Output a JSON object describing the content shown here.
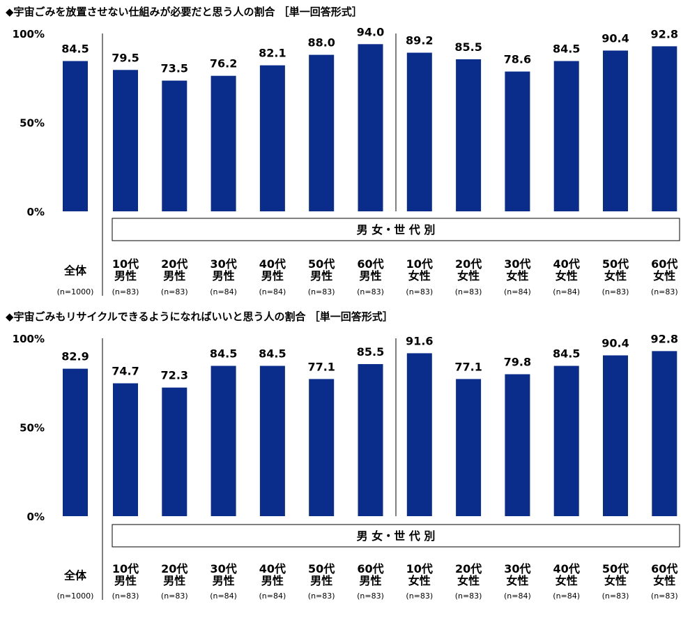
{
  "chart_data": [
    {
      "type": "bar",
      "title": "◆宇宙ごみを放置させない仕組みが必要だと思う人の割合 ［単一回答形式］",
      "group_label": "男 女・世 代 別",
      "yticks": [
        "100%",
        "50%",
        "0%"
      ],
      "ylim": [
        0,
        100
      ],
      "categories": [
        {
          "line1": "",
          "line2": "全体",
          "n": "(n=1000)"
        },
        {
          "line1": "10代",
          "line2": "男性",
          "n": "(n=83)"
        },
        {
          "line1": "20代",
          "line2": "男性",
          "n": "(n=83)"
        },
        {
          "line1": "30代",
          "line2": "男性",
          "n": "(n=84)"
        },
        {
          "line1": "40代",
          "line2": "男性",
          "n": "(n=84)"
        },
        {
          "line1": "50代",
          "line2": "男性",
          "n": "(n=83)"
        },
        {
          "line1": "60代",
          "line2": "男性",
          "n": "(n=83)"
        },
        {
          "line1": "10代",
          "line2": "女性",
          "n": "(n=83)"
        },
        {
          "line1": "20代",
          "line2": "女性",
          "n": "(n=83)"
        },
        {
          "line1": "30代",
          "line2": "女性",
          "n": "(n=84)"
        },
        {
          "line1": "40代",
          "line2": "女性",
          "n": "(n=84)"
        },
        {
          "line1": "50代",
          "line2": "女性",
          "n": "(n=83)"
        },
        {
          "line1": "60代",
          "line2": "女性",
          "n": "(n=83)"
        }
      ],
      "values": [
        84.5,
        79.5,
        73.5,
        76.2,
        82.1,
        88.0,
        94.0,
        89.2,
        85.5,
        78.6,
        84.5,
        90.4,
        92.8
      ],
      "labels": [
        "84.5",
        "79.5",
        "73.5",
        "76.2",
        "82.1",
        "88.0",
        "94.0",
        "89.2",
        "85.5",
        "78.6",
        "84.5",
        "90.4",
        "92.8"
      ],
      "bar_color": "#0a2d8c",
      "grid": false
    },
    {
      "type": "bar",
      "title": "◆宇宙ごみもリサイクルできるようになればいいと思う人の割合 ［単一回答形式］",
      "group_label": "男 女・世 代 別",
      "yticks": [
        "100%",
        "50%",
        "0%"
      ],
      "ylim": [
        0,
        100
      ],
      "categories": [
        {
          "line1": "",
          "line2": "全体",
          "n": "(n=1000)"
        },
        {
          "line1": "10代",
          "line2": "男性",
          "n": "(n=83)"
        },
        {
          "line1": "20代",
          "line2": "男性",
          "n": "(n=83)"
        },
        {
          "line1": "30代",
          "line2": "男性",
          "n": "(n=84)"
        },
        {
          "line1": "40代",
          "line2": "男性",
          "n": "(n=84)"
        },
        {
          "line1": "50代",
          "line2": "男性",
          "n": "(n=83)"
        },
        {
          "line1": "60代",
          "line2": "男性",
          "n": "(n=83)"
        },
        {
          "line1": "10代",
          "line2": "女性",
          "n": "(n=83)"
        },
        {
          "line1": "20代",
          "line2": "女性",
          "n": "(n=83)"
        },
        {
          "line1": "30代",
          "line2": "女性",
          "n": "(n=84)"
        },
        {
          "line1": "40代",
          "line2": "女性",
          "n": "(n=84)"
        },
        {
          "line1": "50代",
          "line2": "女性",
          "n": "(n=83)"
        },
        {
          "line1": "60代",
          "line2": "女性",
          "n": "(n=83)"
        }
      ],
      "values": [
        82.9,
        74.7,
        72.3,
        84.5,
        84.5,
        77.1,
        85.5,
        91.6,
        77.1,
        79.8,
        84.5,
        90.4,
        92.8
      ],
      "labels": [
        "82.9",
        "74.7",
        "72.3",
        "84.5",
        "84.5",
        "77.1",
        "85.5",
        "91.6",
        "77.1",
        "79.8",
        "84.5",
        "90.4",
        "92.8"
      ],
      "bar_color": "#0a2d8c",
      "grid": false
    }
  ]
}
